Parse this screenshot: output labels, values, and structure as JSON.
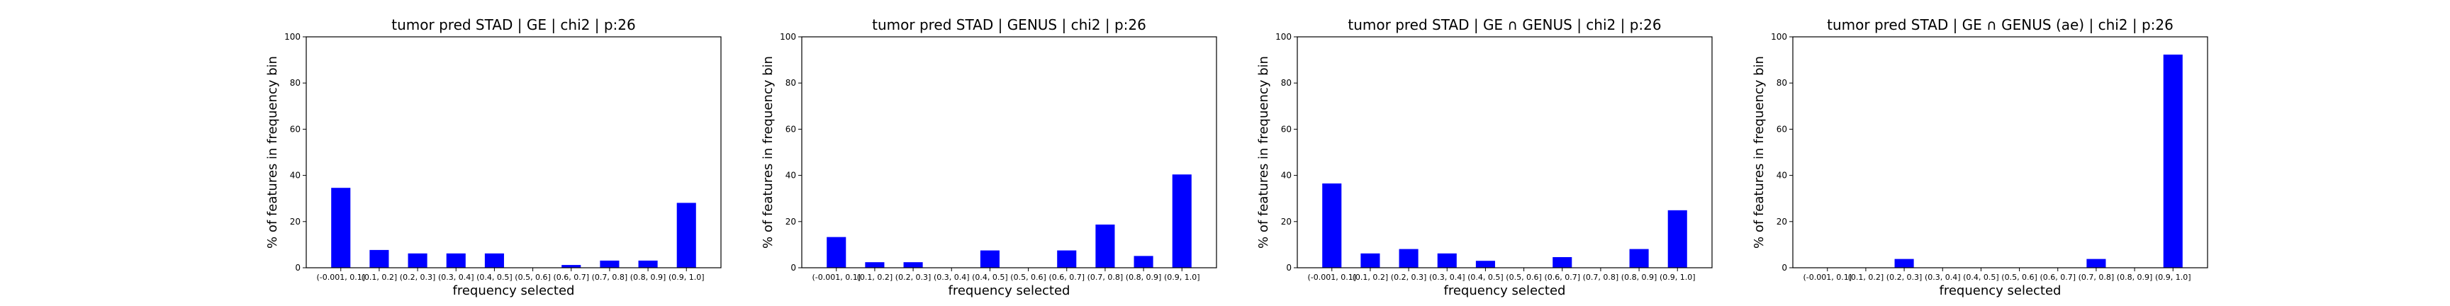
{
  "colors": {
    "bar": "#0000ff",
    "axis": "#000000",
    "background": "#ffffff"
  },
  "chart_data": [
    {
      "type": "bar",
      "title": "tumor pred STAD | GE | chi2 | p:26",
      "xlabel": "frequency selected",
      "ylabel": "% of features in frequency bin",
      "categories": [
        "(-0.001, 0.1]",
        "(0.1, 0.2]",
        "(0.2, 0.3]",
        "(0.3, 0.4]",
        "(0.4, 0.5]",
        "(0.5, 0.6]",
        "(0.6, 0.7]",
        "(0.7, 0.8]",
        "(0.8, 0.9]",
        "(0.9, 1.0]"
      ],
      "values": [
        34.6,
        7.7,
        6.2,
        6.2,
        6.2,
        0,
        1.2,
        3.1,
        3.1,
        28.1
      ],
      "ylim": [
        0,
        100
      ],
      "yticks": [
        0,
        20,
        40,
        60,
        80,
        100
      ],
      "grid": false
    },
    {
      "type": "bar",
      "title": "tumor pred STAD | GENUS | chi2 | p:26",
      "xlabel": "frequency selected",
      "ylabel": "% of features in frequency bin",
      "categories": [
        "(-0.001, 0.1]",
        "(0.1, 0.2]",
        "(0.2, 0.3]",
        "(0.3, 0.4]",
        "(0.4, 0.5]",
        "(0.5, 0.6]",
        "(0.6, 0.7]",
        "(0.7, 0.8]",
        "(0.8, 0.9]",
        "(0.9, 1.0]"
      ],
      "values": [
        13.3,
        2.4,
        2.4,
        0,
        7.5,
        0,
        7.5,
        18.7,
        5.1,
        40.4
      ],
      "ylim": [
        0,
        100
      ],
      "yticks": [
        0,
        20,
        40,
        60,
        80,
        100
      ],
      "grid": false
    },
    {
      "type": "bar",
      "title": "tumor pred STAD | GE ∩ GENUS | chi2 | p:26",
      "xlabel": "frequency selected",
      "ylabel": "% of features in frequency bin",
      "categories": [
        "(-0.001, 0.1]",
        "(0.1, 0.2]",
        "(0.2, 0.3]",
        "(0.3, 0.4]",
        "(0.4, 0.5]",
        "(0.5, 0.6]",
        "(0.6, 0.7]",
        "(0.7, 0.8]",
        "(0.8, 0.9]",
        "(0.9, 1.0]"
      ],
      "values": [
        36.5,
        6.2,
        8.1,
        6.2,
        3.0,
        0,
        4.6,
        0,
        8.1,
        24.9
      ],
      "ylim": [
        0,
        100
      ],
      "yticks": [
        0,
        20,
        40,
        60,
        80,
        100
      ],
      "grid": false
    },
    {
      "type": "bar",
      "title": "tumor pred STAD | GE ∩ GENUS (ae) | chi2 | p:26",
      "xlabel": "frequency selected",
      "ylabel": "% of features in frequency bin",
      "categories": [
        "(-0.001, 0.1]",
        "(0.1, 0.2]",
        "(0.2, 0.3]",
        "(0.3, 0.4]",
        "(0.4, 0.5]",
        "(0.5, 0.6]",
        "(0.6, 0.7]",
        "(0.7, 0.8]",
        "(0.8, 0.9]",
        "(0.9, 1.0]"
      ],
      "values": [
        0,
        0,
        3.8,
        0,
        0,
        0,
        0,
        3.8,
        0,
        92.3
      ],
      "ylim": [
        0,
        100
      ],
      "yticks": [
        0,
        20,
        40,
        60,
        80,
        100
      ],
      "grid": false
    }
  ]
}
